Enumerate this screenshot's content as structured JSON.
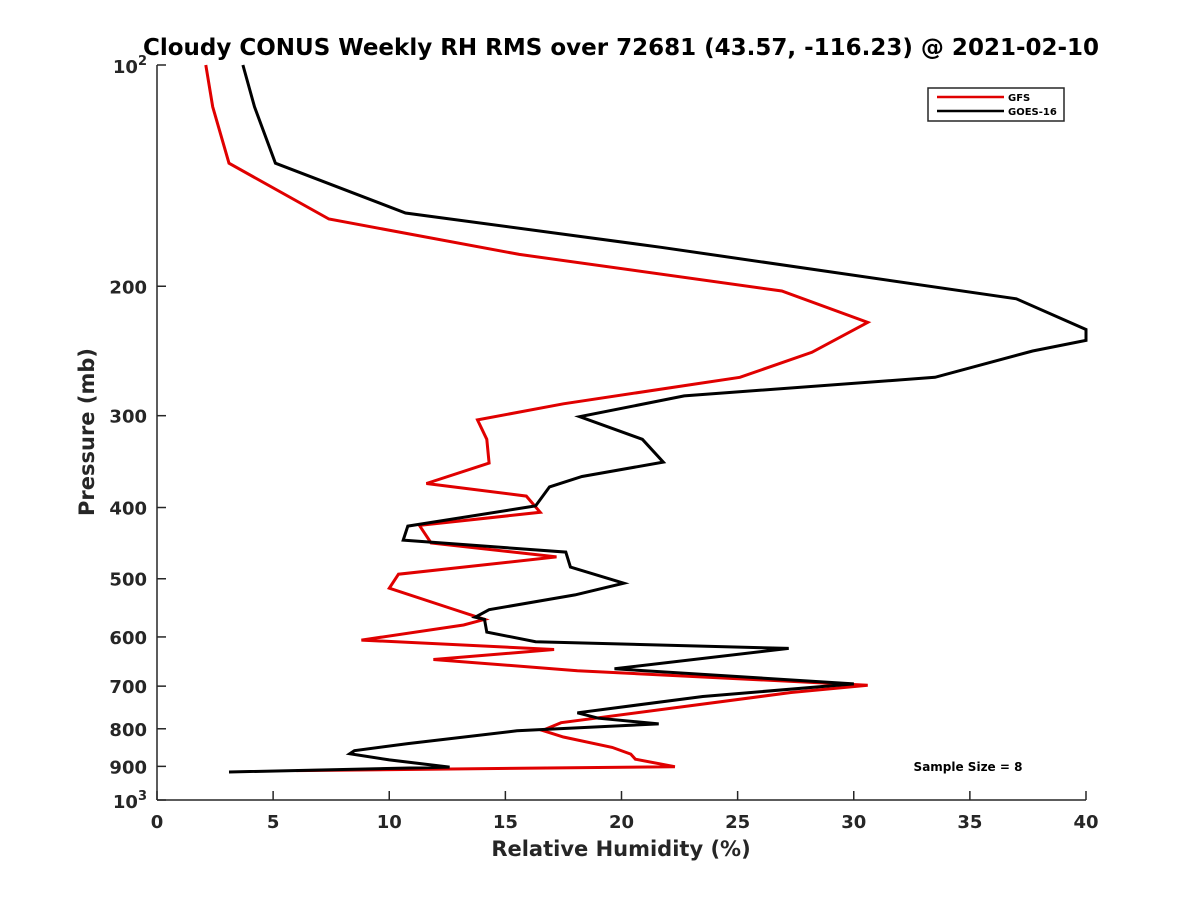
{
  "chart_data": {
    "type": "line",
    "title": "Cloudy CONUS Weekly RH RMS over 72681 (43.57, -116.23) @ 2021-02-10",
    "xlabel": "Relative Humidity (%)",
    "ylabel": "Pressure (mb)",
    "xlim": [
      0,
      40
    ],
    "ylim": [
      100,
      1000
    ],
    "y_scale": "log",
    "y_reversed": true,
    "grid": false,
    "legend_position": "top-right",
    "x_ticks": [
      0,
      5,
      10,
      15,
      20,
      25,
      30,
      35,
      40
    ],
    "x_tick_labels": [
      "0",
      "5",
      "10",
      "15",
      "20",
      "25",
      "30",
      "35",
      "40"
    ],
    "y_ticks": [
      200,
      300,
      400,
      500,
      600,
      700,
      800,
      900
    ],
    "y_tick_labels": [
      "200",
      "300",
      "400",
      "500",
      "600",
      "700",
      "800",
      "900"
    ],
    "y_decade_labels": [
      {
        "value": 100,
        "base": "10",
        "exp": "2"
      },
      {
        "value": 1000,
        "base": "10",
        "exp": "3"
      }
    ],
    "series": [
      {
        "name": "GFS",
        "color": "#e00000",
        "x": [
          2.1,
          2.4,
          3.1,
          7.4,
          15.6,
          26.9,
          30.6,
          28.2,
          25.1,
          17.5,
          13.8,
          14.2,
          14.3,
          11.6,
          15.9,
          16.5,
          11.3,
          11.8,
          17.2,
          10.4,
          10.0,
          12.6,
          14.1,
          13.2,
          8.8,
          17.1,
          11.9,
          18.1,
          30.6,
          27.3,
          17.4,
          16.6,
          17.5,
          19.6,
          20.4,
          20.6,
          22.3,
          6.0
        ],
        "y": [
          100,
          114,
          136,
          162,
          181,
          203,
          224,
          246,
          266,
          289,
          304,
          323,
          348,
          371,
          386,
          406,
          423,
          447,
          467,
          493,
          515,
          548,
          568,
          578,
          606,
          624,
          644,
          667,
          698,
          714,
          785,
          804,
          821,
          848,
          866,
          880,
          901,
          912
        ]
      },
      {
        "name": "GOES-16",
        "color": "#000000",
        "x": [
          3.7,
          4.2,
          5.1,
          10.7,
          21.7,
          37.0,
          40.0,
          40.0,
          37.7,
          33.5,
          22.7,
          18.2,
          20.9,
          21.8,
          18.3,
          16.9,
          16.3,
          10.8,
          10.6,
          17.6,
          17.8,
          20.1,
          18.0,
          14.3,
          13.7,
          14.1,
          14.2,
          16.3,
          27.2,
          19.7,
          30.0,
          23.5,
          18.1,
          19.0,
          21.6,
          15.5,
          10.8,
          8.5,
          8.3,
          10.0,
          12.6,
          3.1
        ],
        "y": [
          100,
          114,
          136,
          159,
          177,
          208,
          229,
          237,
          245,
          266,
          282,
          301,
          323,
          347,
          363,
          375,
          398,
          424,
          443,
          460,
          482,
          507,
          526,
          551,
          564,
          568,
          591,
          609,
          622,
          663,
          695,
          723,
          761,
          774,
          788,
          805,
          838,
          857,
          865,
          882,
          902,
          916
        ]
      }
    ],
    "annotation": "Sample Size = 8"
  }
}
